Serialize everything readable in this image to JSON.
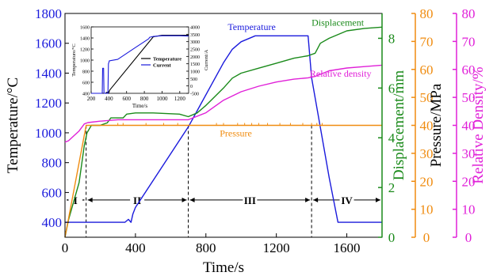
{
  "chart_data": {
    "type": "line",
    "xlabel": "Time/s",
    "xlim": [
      0,
      1800
    ],
    "xticks": [
      0,
      400,
      800,
      1200,
      1600
    ],
    "axes": {
      "temperature": {
        "label": "Temperature/°C",
        "lim": [
          300,
          1800
        ],
        "ticks": [
          400,
          600,
          800,
          1000,
          1200,
          1400,
          1600,
          1800
        ],
        "color": "#1a1adc"
      },
      "displacement": {
        "label": "Displacement/mm",
        "lim": [
          0,
          9
        ],
        "ticks": [
          0,
          2,
          4,
          6,
          8
        ],
        "color": "#1a8a1a"
      },
      "pressure": {
        "label": "Pressure/MPa",
        "lim": [
          0,
          80
        ],
        "ticks": [
          0,
          10,
          20,
          30,
          40,
          50,
          60,
          70,
          80
        ],
        "color": "#f08c10"
      },
      "density": {
        "label": "Relative Density/%",
        "lim": [
          0,
          80
        ],
        "ticks": [
          0,
          10,
          20,
          30,
          40,
          50,
          60,
          70,
          80
        ],
        "color": "#e020d8"
      }
    },
    "series": [
      {
        "key": "temperature",
        "name": "Temperature",
        "axis": "temperature",
        "color": "#1a1adc",
        "x": [
          0,
          340,
          360,
          375,
          385,
          400,
          700,
          900,
          950,
          1000,
          1080,
          1380,
          1400,
          1500,
          1550,
          1800
        ],
        "y": [
          400,
          400,
          420,
          400,
          455,
          500,
          1040,
          1470,
          1560,
          1610,
          1650,
          1650,
          1370,
          700,
          400,
          400
        ]
      },
      {
        "key": "displacement",
        "name": "Displacement",
        "axis": "displacement",
        "color": "#1a8a1a",
        "x": [
          0,
          20,
          80,
          110,
          125,
          150,
          200,
          240,
          260,
          330,
          350,
          400,
          500,
          650,
          700,
          750,
          800,
          900,
          950,
          1000,
          1100,
          1200,
          1300,
          1380,
          1420,
          1450,
          1500,
          1600,
          1700,
          1800
        ],
        "y": [
          0,
          0.7,
          2.2,
          3.7,
          4.2,
          4.5,
          4.5,
          4.6,
          4.8,
          4.8,
          4.95,
          5.0,
          5.0,
          4.95,
          4.85,
          5.0,
          5.3,
          6.0,
          6.4,
          6.6,
          6.8,
          7.0,
          7.2,
          7.3,
          7.4,
          7.8,
          8.0,
          8.3,
          8.4,
          8.45
        ]
      },
      {
        "key": "pressure",
        "name": "Pressure",
        "axis": "pressure",
        "color": "#f08c10",
        "x": [
          0,
          120,
          130,
          1800
        ],
        "y": [
          0,
          40,
          40,
          40
        ]
      },
      {
        "key": "density",
        "name": "Relative density",
        "axis": "density",
        "color": "#e020d8",
        "x": [
          0,
          20,
          80,
          110,
          130,
          200,
          300,
          400,
          700,
          800,
          900,
          1000,
          1100,
          1200,
          1300,
          1380,
          1420,
          1500,
          1600,
          1700,
          1800
        ],
        "y": [
          34,
          34.5,
          38,
          40.5,
          41,
          41.5,
          42,
          42,
          42,
          44.5,
          49,
          52,
          54,
          55.5,
          56.5,
          57,
          57.5,
          59.5,
          60.5,
          61,
          61.5
        ]
      }
    ],
    "pressure_spikes_x": [
      300,
      330,
      460,
      560,
      640,
      860,
      900,
      980,
      1020,
      1060,
      1100,
      1150,
      1220,
      1280,
      1350,
      1400,
      1430,
      1460
    ],
    "stage_boundaries": [
      120,
      700,
      1400
    ],
    "stages": [
      {
        "label": "I",
        "from": 0,
        "to": 120
      },
      {
        "label": "II",
        "from": 120,
        "to": 700
      },
      {
        "label": "III",
        "from": 700,
        "to": 1400
      },
      {
        "label": "IV",
        "from": 1400,
        "to": 1800
      }
    ],
    "annotations": [
      {
        "series": "displacement",
        "text": "Displacement",
        "color": "#1a8a1a"
      },
      {
        "series": "temperature",
        "text": "Temperature",
        "color": "#1a1adc"
      },
      {
        "series": "density",
        "text": "Relative density",
        "color": "#e020d8"
      },
      {
        "series": "pressure",
        "text": "Pressure",
        "color": "#f08c10"
      }
    ],
    "inset": {
      "type": "line",
      "xlabel": "Time/s",
      "xlim": [
        200,
        1300
      ],
      "xticks": [
        200,
        400,
        600,
        800,
        1000,
        1200
      ],
      "left": {
        "label": "Temperature/°C",
        "lim": [
          400,
          1600
        ],
        "ticks": [
          400,
          600,
          800,
          1000,
          1200,
          1400,
          1600
        ]
      },
      "right": {
        "label": "Current/A",
        "lim": [
          -500,
          4000
        ],
        "ticks": [
          -500,
          0,
          500,
          1000,
          1500,
          2000,
          2500,
          3000,
          3500,
          4000
        ]
      },
      "legend": [
        {
          "name": "Temperature",
          "color": "#000000"
        },
        {
          "name": "Current",
          "color": "#1a1adc"
        }
      ],
      "series": [
        {
          "name": "Temperature",
          "axis": "left",
          "color": "#000000",
          "x": [
            200,
            360,
            380,
            395,
            410,
            900,
            1000,
            1300
          ],
          "y": [
            400,
            400,
            420,
            400,
            460,
            1420,
            1450,
            1450
          ]
        },
        {
          "name": "Current",
          "axis": "right",
          "color": "#1a1adc",
          "x": [
            200,
            325,
            330,
            340,
            345,
            390,
            395,
            400,
            405,
            500,
            600,
            700,
            800,
            850,
            860,
            900,
            1000,
            1100,
            1200,
            1300
          ],
          "y": [
            -500,
            -500,
            1200,
            1200,
            -500,
            -500,
            1500,
            1600,
            1700,
            1800,
            2200,
            2600,
            3000,
            3200,
            3300,
            3350,
            3400,
            3400,
            3400,
            3380
          ]
        }
      ]
    }
  }
}
